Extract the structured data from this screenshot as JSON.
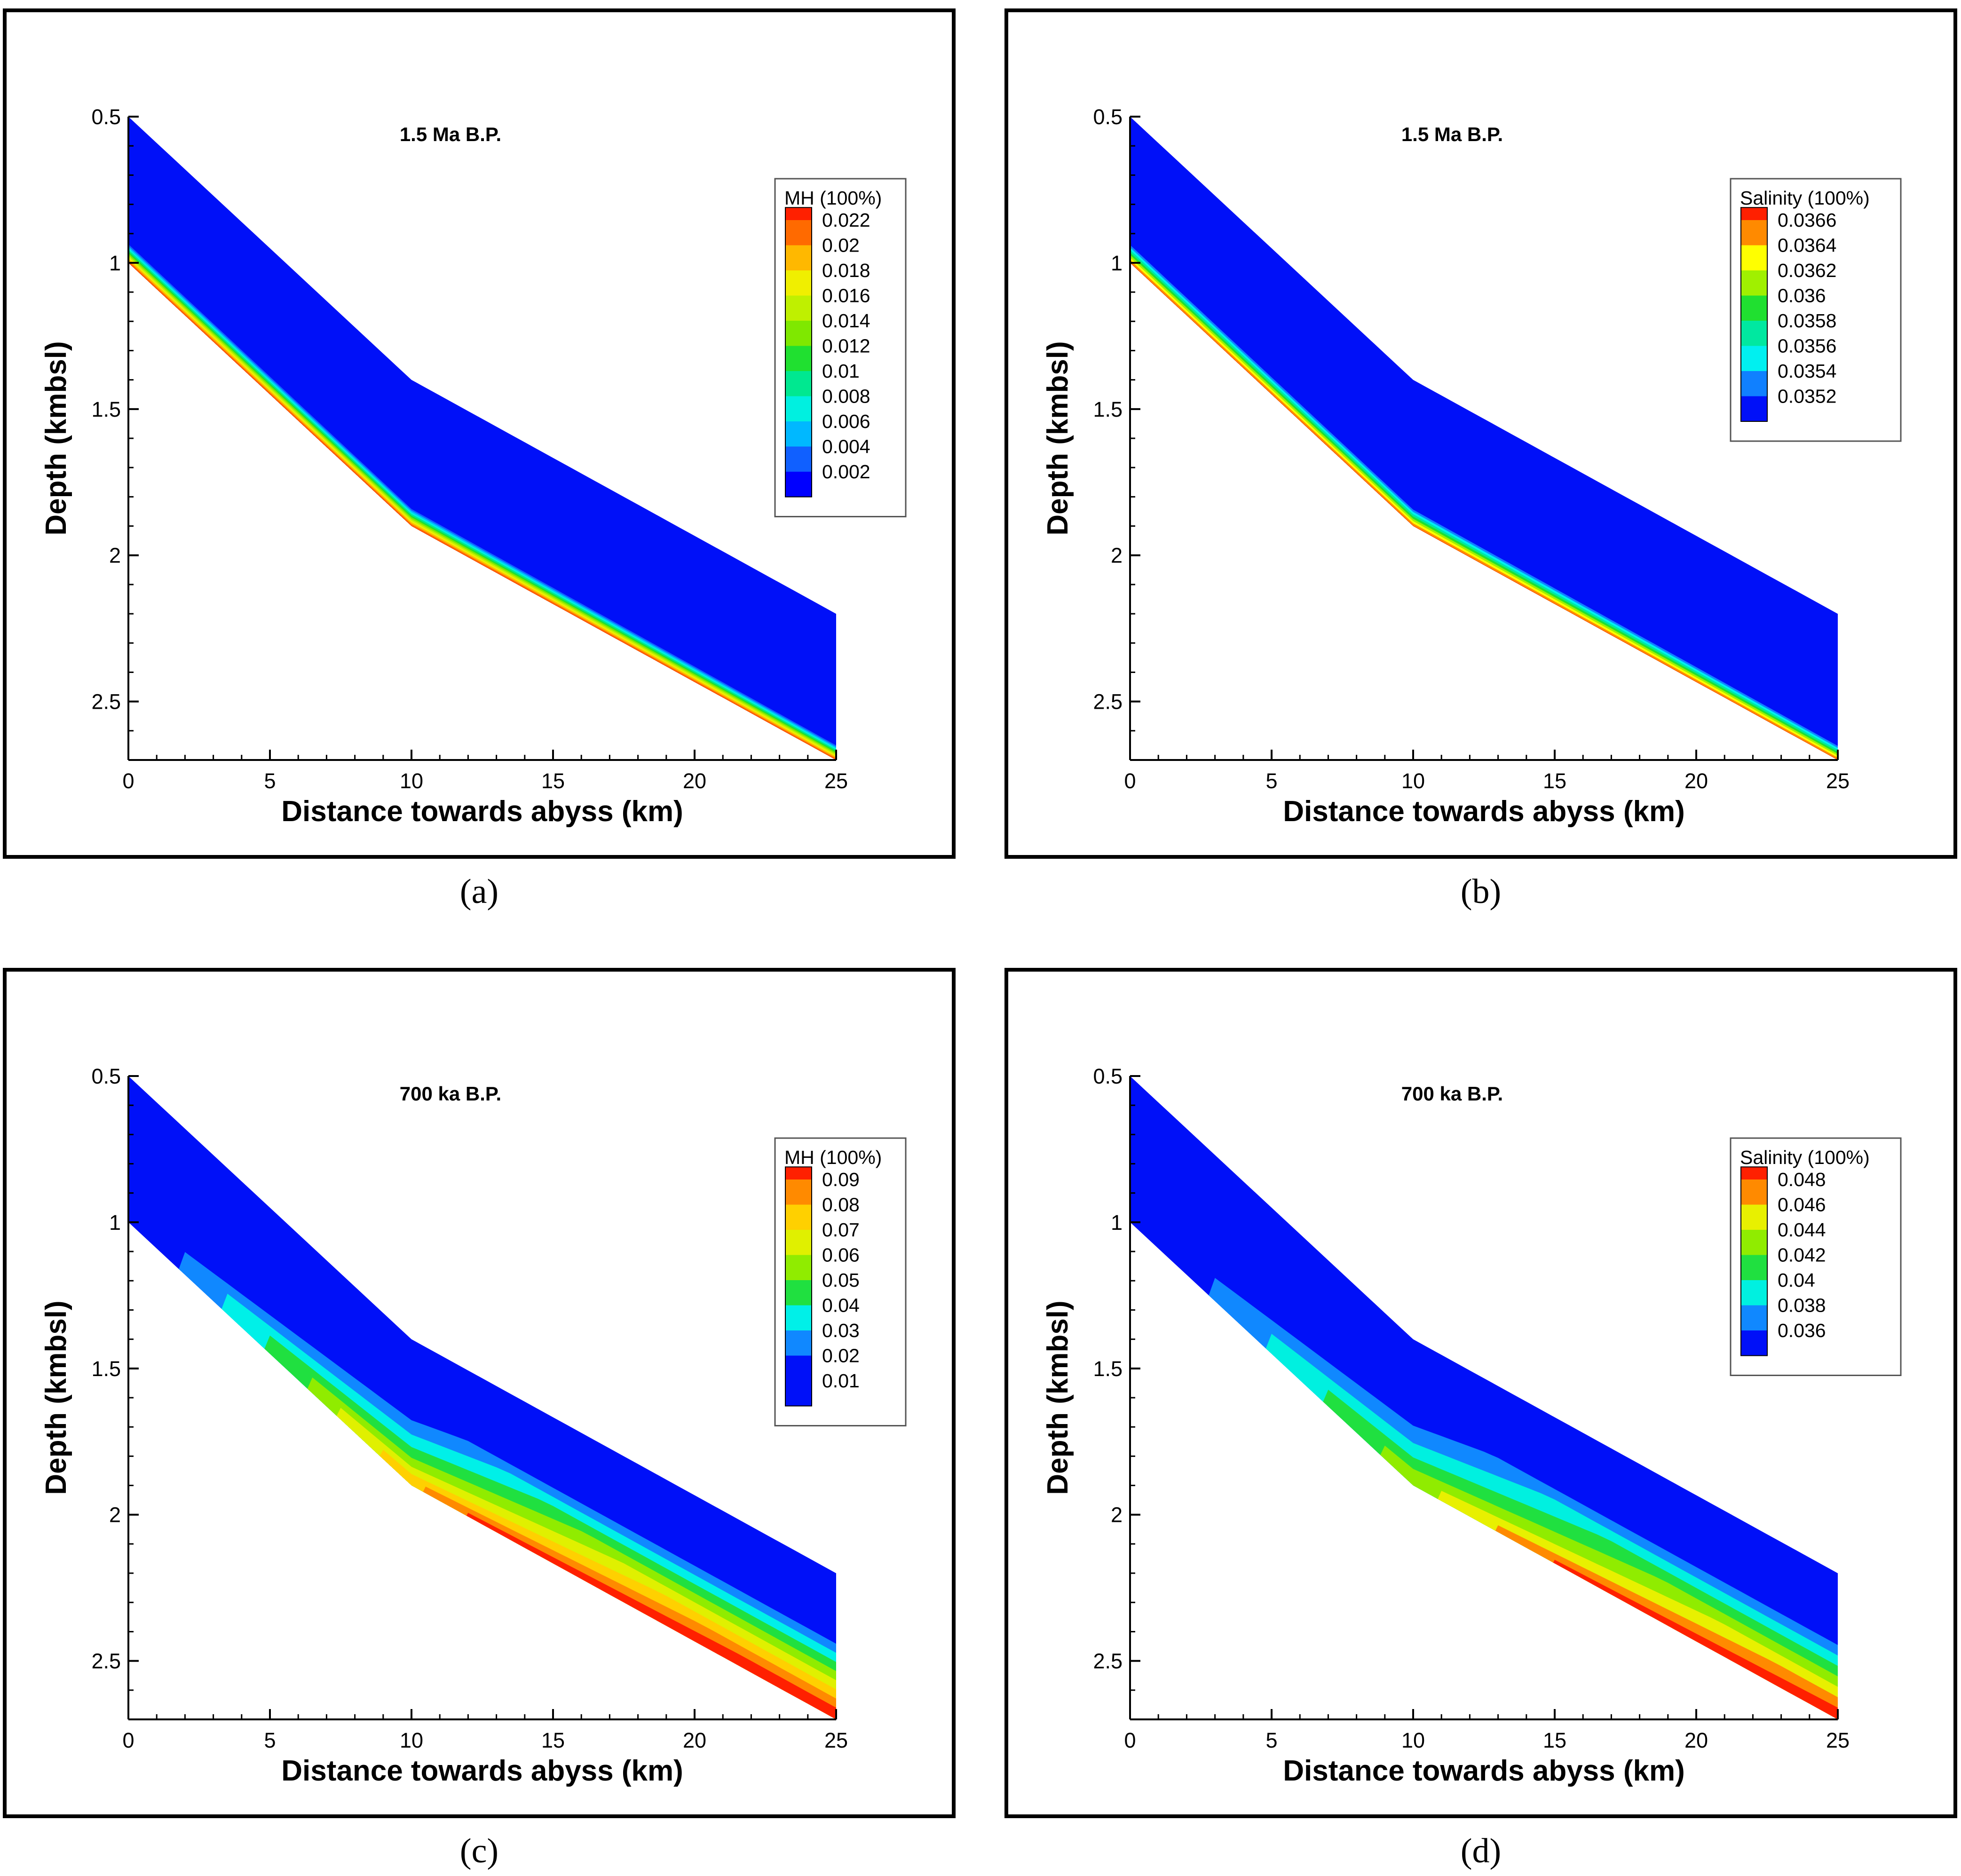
{
  "chart_data": [
    {
      "type": "contour",
      "caption": "(a)",
      "title": "1.5 Ma B.P.",
      "xlabel": "Distance towards abyss (km)",
      "ylabel": "Depth (kmbsl)",
      "xlim": [
        0,
        25
      ],
      "ylim": [
        0.5,
        2.7
      ],
      "xticks": [
        "0",
        "5",
        "10",
        "15",
        "20",
        "25"
      ],
      "yticks": [
        "0.5",
        "1",
        "1.5",
        "2",
        "2.5"
      ],
      "domain": {
        "top_depth_km": [
          0.5,
          1.4,
          2.2
        ],
        "bottom_depth_km": [
          1.0,
          1.9,
          2.7
        ],
        "x_km": [
          0,
          10,
          25
        ]
      },
      "legend": {
        "title": "MH (100%)",
        "levels": [
          "0.022",
          "0.02",
          "0.018",
          "0.016",
          "0.014",
          "0.012",
          "0.01",
          "0.008",
          "0.006",
          "0.004",
          "0.002"
        ],
        "colors": [
          "#ff2000",
          "#ff6a00",
          "#ffb800",
          "#f0ef00",
          "#bff000",
          "#7fe800",
          "#20e030",
          "#00e890",
          "#00f0e0",
          "#00b8ff",
          "#1060ff",
          "#0000ff"
        ]
      },
      "field": {
        "kind": "thin-base-layer",
        "background": "#0010f8"
      }
    },
    {
      "type": "contour",
      "caption": "(b)",
      "title": "1.5 Ma B.P.",
      "xlabel": "Distance towards abyss (km)",
      "ylabel": "Depth (kmbsl)",
      "xlim": [
        0,
        25
      ],
      "ylim": [
        0.5,
        2.7
      ],
      "xticks": [
        "0",
        "5",
        "10",
        "15",
        "20",
        "25"
      ],
      "yticks": [
        "0.5",
        "1",
        "1.5",
        "2",
        "2.5"
      ],
      "domain": {
        "top_depth_km": [
          0.5,
          1.4,
          2.2
        ],
        "bottom_depth_km": [
          1.0,
          1.9,
          2.7
        ],
        "x_km": [
          0,
          10,
          25
        ]
      },
      "legend": {
        "title": "Salinity (100%)",
        "levels": [
          "0.0366",
          "0.0364",
          "0.0362",
          "0.036",
          "0.0358",
          "0.0356",
          "0.0354",
          "0.0352"
        ],
        "colors": [
          "#ff2000",
          "#ff8a00",
          "#ffff00",
          "#a0f000",
          "#20e030",
          "#00e8a0",
          "#00f0f0",
          "#1080ff",
          "#0010f8"
        ]
      },
      "field": {
        "kind": "thin-base-layer",
        "background": "#0010f8"
      }
    },
    {
      "type": "contour",
      "caption": "(c)",
      "title": "700 ka B.P.",
      "xlabel": "Distance towards abyss (km)",
      "ylabel": "Depth (kmbsl)",
      "xlim": [
        0,
        25
      ],
      "ylim": [
        0.5,
        2.7
      ],
      "xticks": [
        "0",
        "5",
        "10",
        "15",
        "20",
        "25"
      ],
      "yticks": [
        "0.5",
        "1",
        "1.5",
        "2",
        "2.5"
      ],
      "domain": {
        "top_depth_km": [
          0.5,
          1.4,
          2.2
        ],
        "bottom_depth_km": [
          1.0,
          1.9,
          2.7
        ],
        "x_km": [
          0,
          10,
          25
        ]
      },
      "legend": {
        "title": "MH (100%)",
        "levels": [
          "0.09",
          "0.08",
          "0.07",
          "0.06",
          "0.05",
          "0.04",
          "0.03",
          "0.02",
          "0.01"
        ],
        "colors": [
          "#ff2000",
          "#ff8a00",
          "#ffd000",
          "#e0f000",
          "#90ec00",
          "#20e040",
          "#00f0e8",
          "#1088ff",
          "#0010f8"
        ]
      },
      "field": {
        "kind": "thick-plume",
        "background": "#0010f8"
      }
    },
    {
      "type": "contour",
      "caption": "(d)",
      "title": "700 ka B.P.",
      "xlabel": "Distance towards abyss (km)",
      "ylabel": "Depth (kmbsl)",
      "xlim": [
        0,
        25
      ],
      "ylim": [
        0.5,
        2.7
      ],
      "xticks": [
        "0",
        "5",
        "10",
        "15",
        "20",
        "25"
      ],
      "yticks": [
        "0.5",
        "1",
        "1.5",
        "2",
        "2.5"
      ],
      "domain": {
        "top_depth_km": [
          0.5,
          1.4,
          2.2
        ],
        "bottom_depth_km": [
          1.0,
          1.9,
          2.7
        ],
        "x_km": [
          0,
          10,
          25
        ]
      },
      "legend": {
        "title": "Salinity (100%)",
        "levels": [
          "0.048",
          "0.046",
          "0.044",
          "0.042",
          "0.04",
          "0.038",
          "0.036"
        ],
        "colors": [
          "#ff2000",
          "#ff8a00",
          "#e8f000",
          "#90ec00",
          "#20e040",
          "#00f0e0",
          "#1088ff",
          "#0010f8"
        ]
      },
      "field": {
        "kind": "thick-plume-salinity",
        "background": "#0010f8"
      }
    }
  ]
}
